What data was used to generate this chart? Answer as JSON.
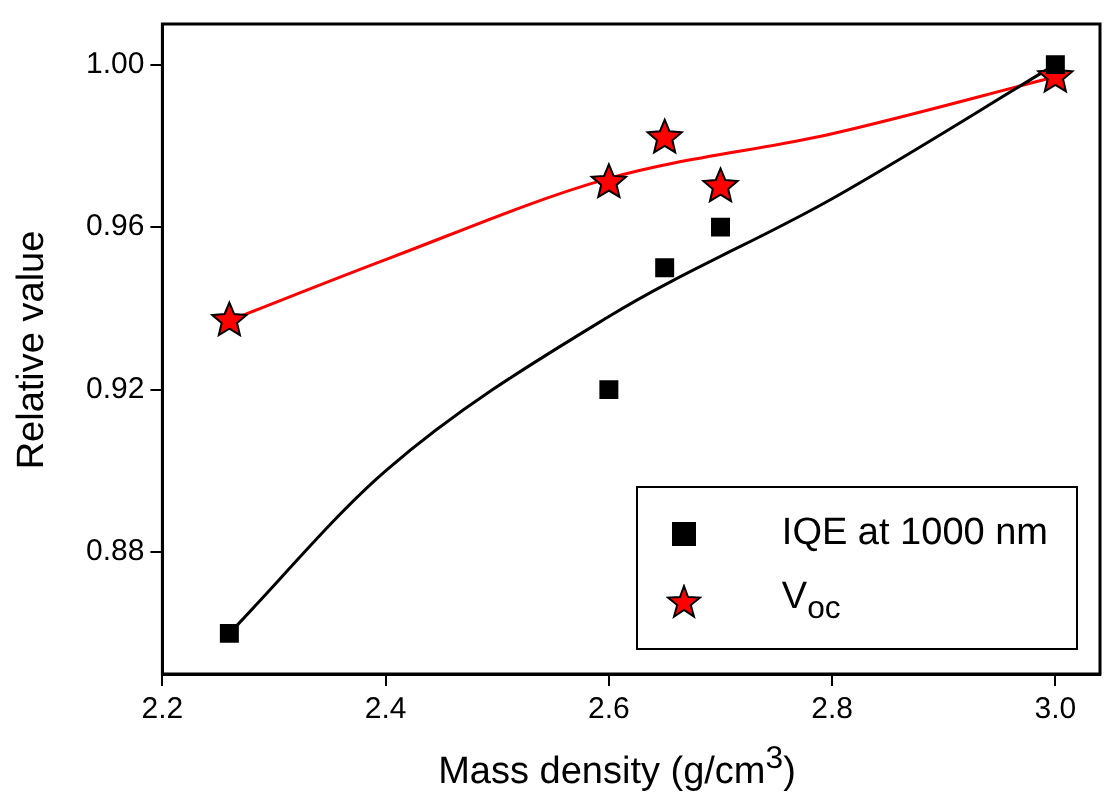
{
  "chart_data": {
    "type": "scatter",
    "xlabel": "Mass density (g/cm$^{3}$)",
    "ylabel": "Relative value",
    "xlim": [
      2.2,
      3.04
    ],
    "ylim": [
      0.85,
      1.01
    ],
    "xticks": [
      2.2,
      2.4,
      2.6,
      2.8,
      {
        "value": 3.0,
        "label": "3.0"
      }
    ],
    "yticks": [
      {
        "value": 0.88,
        "label": "0.88"
      },
      {
        "value": 0.92,
        "label": "0.92"
      },
      {
        "value": 0.96,
        "label": "0.96"
      },
      {
        "value": 1.0,
        "label": "1.00"
      }
    ],
    "grid": false,
    "legend": "bottom right",
    "series": [
      {
        "type": "line",
        "marker": "none",
        "color": "#000000",
        "x": [
          2.26,
          2.4,
          2.6,
          2.8,
          3.0
        ],
        "values": [
          0.86,
          0.9,
          0.938,
          0.967,
          1.0
        ]
      },
      {
        "type": "line",
        "marker": "none",
        "color": "#ff0000",
        "x": [
          2.26,
          2.4,
          2.6,
          2.8,
          3.0
        ],
        "values": [
          0.937,
          0.952,
          0.972,
          0.983,
          0.997
        ]
      },
      {
        "name": "IQE at 1000 nm",
        "type": "scatter",
        "marker": "square",
        "color": "#000000",
        "x": [
          2.26,
          2.6,
          2.65,
          2.7,
          3.0
        ],
        "values": [
          0.86,
          0.92,
          0.95,
          0.96,
          1.0
        ]
      },
      {
        "name": "V$_{oc}$",
        "type": "scatter",
        "marker": "star",
        "color": "#ff0000",
        "x": [
          2.26,
          2.6,
          2.65,
          2.7,
          3.0
        ],
        "values": [
          0.937,
          0.971,
          0.982,
          0.97,
          0.997
        ]
      }
    ]
  }
}
